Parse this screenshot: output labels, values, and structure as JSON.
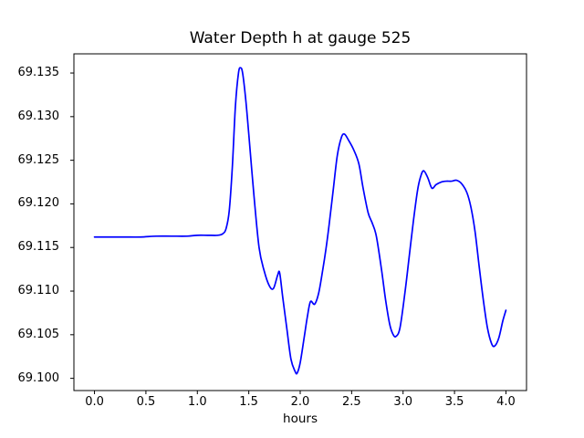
{
  "chart_data": {
    "type": "line",
    "title": "Water Depth h at gauge 525",
    "xlabel": "hours",
    "ylabel": "",
    "xlim": [
      -0.2,
      4.2
    ],
    "ylim": [
      69.0986,
      69.1372
    ],
    "grid": false,
    "legend": "none",
    "line_color": "#0000ff",
    "axis_color": "#000000",
    "background_color": "#ffffff",
    "xticks": [
      0.0,
      0.5,
      1.0,
      1.5,
      2.0,
      2.5,
      3.0,
      3.5,
      4.0
    ],
    "xtick_labels": [
      "0.0",
      "0.5",
      "1.0",
      "1.5",
      "2.0",
      "2.5",
      "3.0",
      "3.5",
      "4.0"
    ],
    "yticks": [
      69.1,
      69.105,
      69.11,
      69.115,
      69.12,
      69.125,
      69.13,
      69.135
    ],
    "ytick_labels": [
      "69.100",
      "69.105",
      "69.110",
      "69.115",
      "69.120",
      "69.125",
      "69.130",
      "69.135"
    ],
    "series": [
      {
        "name": "h",
        "x": [
          0.0,
          0.15,
          0.3,
          0.45,
          0.6,
          0.75,
          0.9,
          1.0,
          1.1,
          1.2,
          1.25,
          1.28,
          1.31,
          1.34,
          1.37,
          1.4,
          1.42,
          1.44,
          1.47,
          1.5,
          1.55,
          1.6,
          1.65,
          1.7,
          1.74,
          1.78,
          1.8,
          1.83,
          1.87,
          1.91,
          1.95,
          1.97,
          2.0,
          2.04,
          2.07,
          2.1,
          2.14,
          2.18,
          2.22,
          2.25,
          2.28,
          2.32,
          2.36,
          2.4,
          2.43,
          2.47,
          2.52,
          2.57,
          2.61,
          2.66,
          2.7,
          2.74,
          2.79,
          2.83,
          2.87,
          2.9,
          2.93,
          2.97,
          3.02,
          3.06,
          3.1,
          3.14,
          3.17,
          3.2,
          3.24,
          3.28,
          3.32,
          3.37,
          3.42,
          3.47,
          3.52,
          3.57,
          3.62,
          3.66,
          3.7,
          3.74,
          3.78,
          3.82,
          3.86,
          3.89,
          3.93,
          3.97,
          4.0
        ],
        "y": [
          69.1162,
          69.1162,
          69.1162,
          69.1162,
          69.1163,
          69.1163,
          69.1163,
          69.1164,
          69.1164,
          69.1164,
          69.1166,
          69.1172,
          69.1192,
          69.1242,
          69.1312,
          69.135,
          69.1356,
          69.135,
          69.132,
          69.128,
          69.121,
          69.115,
          69.1123,
          69.1106,
          69.1103,
          69.1118,
          69.1121,
          69.1093,
          69.1057,
          69.1022,
          69.1008,
          69.1006,
          69.1018,
          69.1048,
          69.1071,
          69.1088,
          69.1085,
          69.1098,
          69.1125,
          69.1148,
          69.1175,
          69.1215,
          69.1255,
          69.1276,
          69.128,
          69.1273,
          69.1262,
          69.1246,
          69.1219,
          69.119,
          69.1178,
          69.1163,
          69.1125,
          69.109,
          69.1062,
          69.1051,
          69.1048,
          69.1058,
          69.11,
          69.114,
          69.118,
          69.1215,
          69.1231,
          69.1238,
          69.123,
          69.1218,
          69.1222,
          69.1225,
          69.1226,
          69.1226,
          69.1227,
          69.1223,
          69.1213,
          69.1196,
          69.1168,
          69.1128,
          69.109,
          69.1058,
          69.104,
          69.1037,
          69.1046,
          69.1066,
          69.1078
        ]
      }
    ]
  }
}
